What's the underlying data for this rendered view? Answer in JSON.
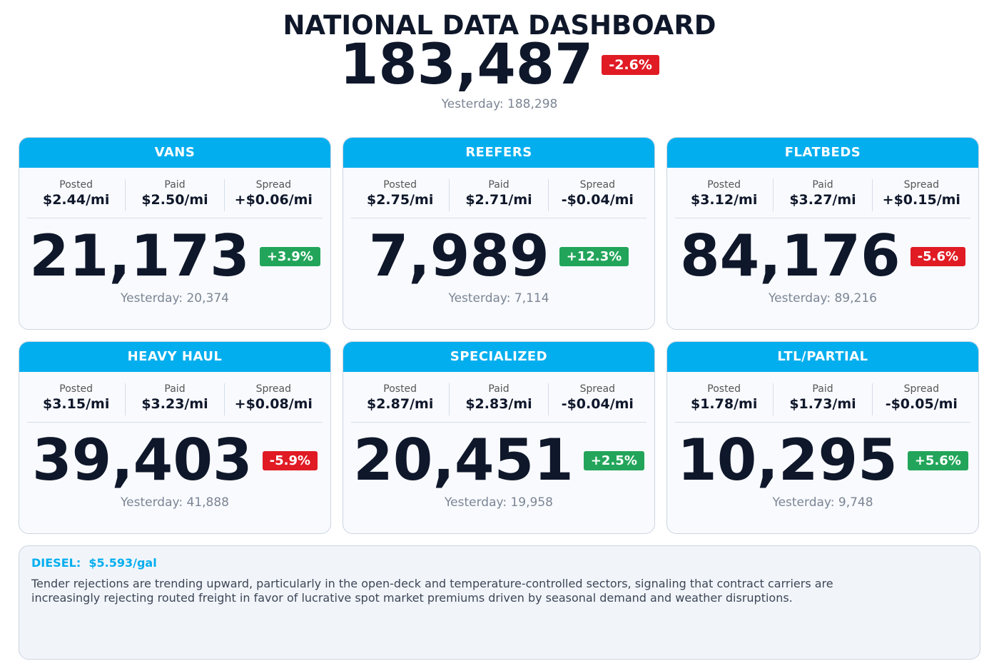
{
  "header": {
    "title": "NATIONAL DATA DASHBOARD",
    "total": "183,487",
    "change": "-2.6%",
    "change_direction": "down",
    "yesterday": "Yesterday: 188,298"
  },
  "rate_labels": [
    "Posted",
    "Paid",
    "Spread"
  ],
  "cards": [
    {
      "title": "VANS",
      "rates": [
        "$2.44/mi",
        "$2.50/mi",
        "+$0.06/mi"
      ],
      "count": "21,173",
      "change": "+3.9%",
      "change_direction": "up",
      "yesterday": "Yesterday: 20,374"
    },
    {
      "title": "REEFERS",
      "rates": [
        "$2.75/mi",
        "$2.71/mi",
        "-$0.04/mi"
      ],
      "count": "7,989",
      "change": "+12.3%",
      "change_direction": "up",
      "yesterday": "Yesterday: 7,114"
    },
    {
      "title": "FLATBEDS",
      "rates": [
        "$3.12/mi",
        "$3.27/mi",
        "+$0.15/mi"
      ],
      "count": "84,176",
      "change": "-5.6%",
      "change_direction": "down",
      "yesterday": "Yesterday: 89,216"
    },
    {
      "title": "HEAVY HAUL",
      "rates": [
        "$3.15/mi",
        "$3.23/mi",
        "+$0.08/mi"
      ],
      "count": "39,403",
      "change": "-5.9%",
      "change_direction": "down",
      "yesterday": "Yesterday: 41,888"
    },
    {
      "title": "SPECIALIZED",
      "rates": [
        "$2.87/mi",
        "$2.83/mi",
        "-$0.04/mi"
      ],
      "count": "20,451",
      "change": "+2.5%",
      "change_direction": "up",
      "yesterday": "Yesterday: 19,958"
    },
    {
      "title": "LTL/PARTIAL",
      "rates": [
        "$1.78/mi",
        "$1.73/mi",
        "-$0.05/mi"
      ],
      "count": "10,295",
      "change": "+5.6%",
      "change_direction": "up",
      "yesterday": "Yesterday: 9,748"
    }
  ],
  "footer": {
    "diesel_label": "DIESEL:",
    "diesel_price": "$5.593/gal",
    "note": "Tender rejections are trending upward, particularly in the open-deck and temperature-controlled sectors, signaling that contract carriers are increasingly rejecting routed freight in favor of lucrative spot market premiums driven by seasonal demand and weather disruptions."
  }
}
